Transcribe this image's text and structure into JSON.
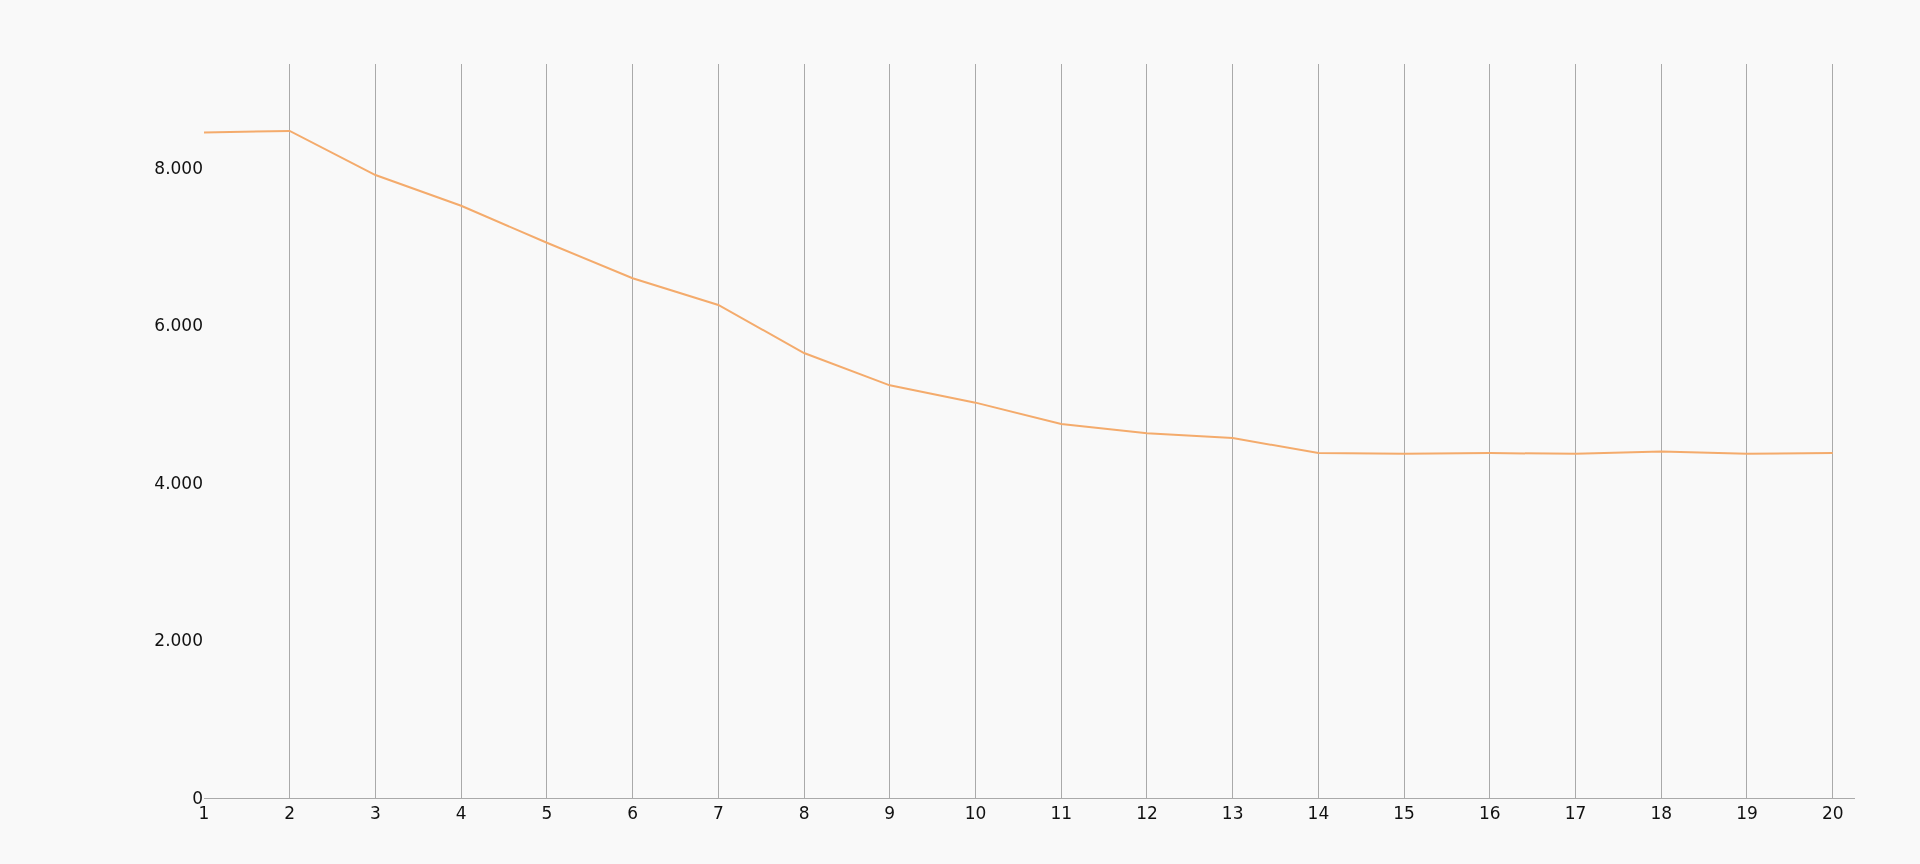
{
  "chart_data": {
    "type": "line",
    "x": [
      1,
      2,
      3,
      4,
      5,
      6,
      7,
      8,
      9,
      10,
      11,
      12,
      13,
      14,
      15,
      16,
      17,
      18,
      19,
      20
    ],
    "series": [
      {
        "color": "#f4ab6c",
        "values": [
          8450,
          8470,
          7910,
          7520,
          7050,
          6600,
          6260,
          5650,
          5240,
          5020,
          4750,
          4630,
          4570,
          4380,
          4370,
          4380,
          4370,
          4400,
          4370,
          4380
        ]
      }
    ],
    "xlim": [
      1,
      20.26
    ],
    "xticks": [
      1,
      2,
      3,
      4,
      5,
      6,
      7,
      8,
      9,
      10,
      11,
      12,
      13,
      14,
      15,
      16,
      17,
      18,
      19,
      20
    ],
    "ylim": [
      0,
      9320
    ],
    "yticks": [
      0,
      {
        "value": 2000,
        "label": "2.000"
      },
      {
        "value": 4000,
        "label": "4.000"
      },
      {
        "value": 6000,
        "label": "6.000"
      },
      {
        "value": 8000,
        "label": "8.000"
      }
    ],
    "grid": "x",
    "marker": "none",
    "line_style": "solid"
  }
}
